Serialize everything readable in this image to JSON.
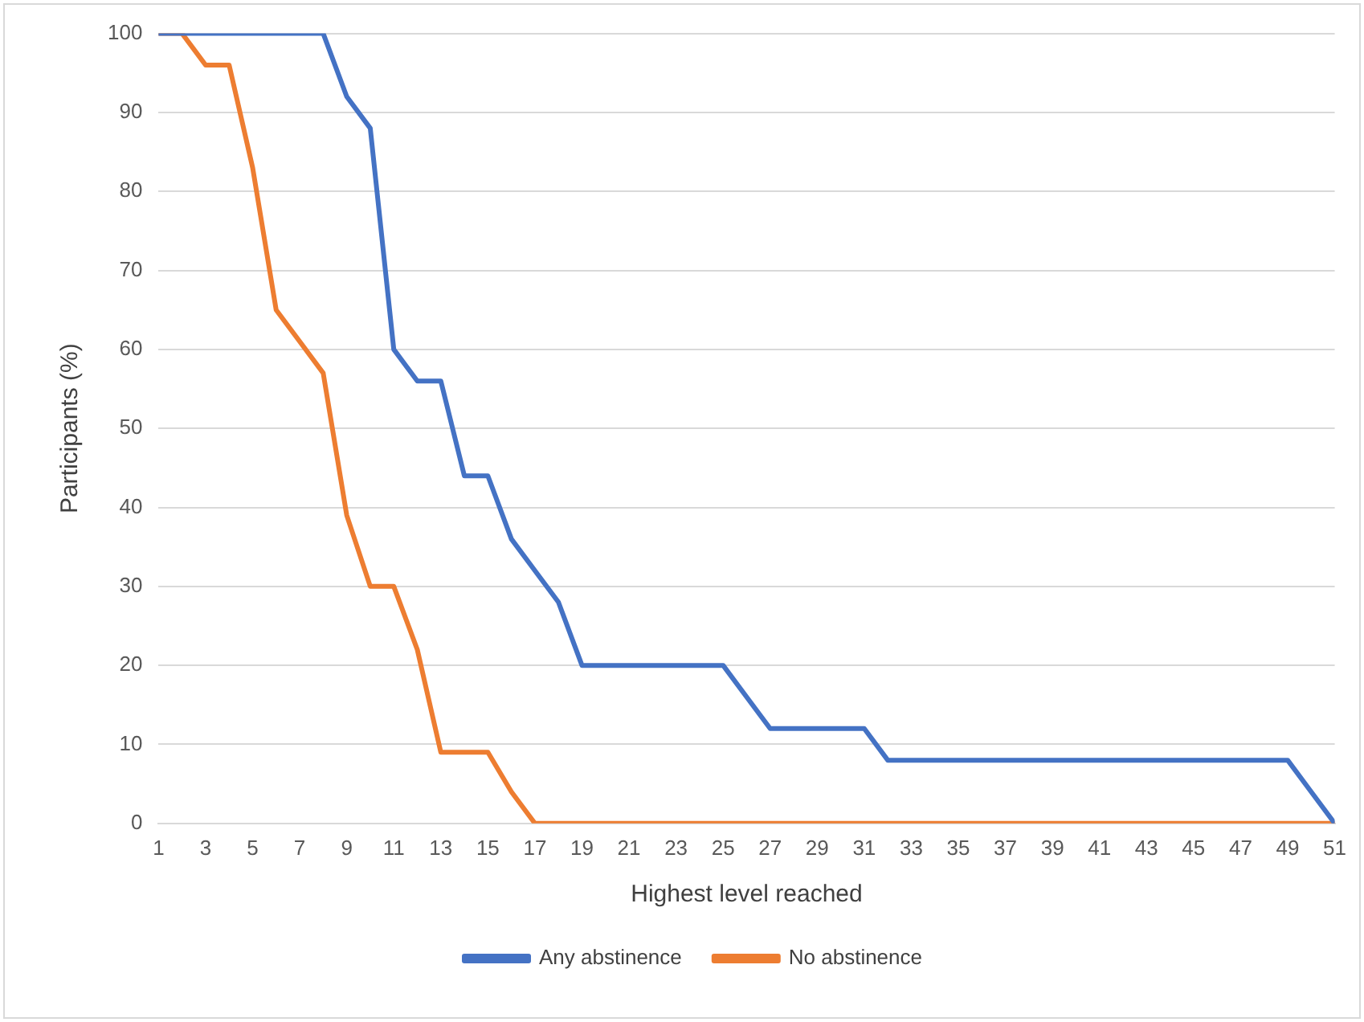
{
  "chart_data": {
    "type": "line",
    "xlabel": "Highest level reached",
    "ylabel": "Participants (%)",
    "x": [
      1,
      2,
      3,
      4,
      5,
      6,
      7,
      8,
      9,
      10,
      11,
      12,
      13,
      14,
      15,
      16,
      17,
      18,
      19,
      20,
      21,
      22,
      23,
      24,
      25,
      26,
      27,
      28,
      29,
      30,
      31,
      32,
      33,
      34,
      35,
      36,
      37,
      38,
      39,
      40,
      41,
      42,
      43,
      44,
      45,
      46,
      47,
      48,
      49,
      50,
      51
    ],
    "series": [
      {
        "name": "Any abstinence",
        "color": "#4472c4",
        "values": [
          100,
          100,
          100,
          100,
          100,
          100,
          100,
          100,
          92,
          88,
          60,
          56,
          56,
          44,
          44,
          36,
          32,
          28,
          20,
          20,
          20,
          20,
          20,
          20,
          20,
          16,
          12,
          12,
          12,
          12,
          12,
          8,
          8,
          8,
          8,
          8,
          8,
          8,
          8,
          8,
          8,
          8,
          8,
          8,
          8,
          8,
          8,
          8,
          8,
          4,
          0
        ]
      },
      {
        "name": "No abstinence",
        "color": "#ed7d31",
        "values": [
          100,
          100,
          96,
          96,
          83,
          65,
          61,
          57,
          39,
          30,
          30,
          22,
          9,
          9,
          9,
          4,
          0,
          0,
          0,
          0,
          0,
          0,
          0,
          0,
          0,
          0,
          0,
          0,
          0,
          0,
          0,
          0,
          0,
          0,
          0,
          0,
          0,
          0,
          0,
          0,
          0,
          0,
          0,
          0,
          0,
          0,
          0,
          0,
          0,
          0,
          0
        ]
      }
    ],
    "xlim": [
      1,
      51
    ],
    "xticks": [
      1,
      3,
      5,
      7,
      9,
      11,
      13,
      15,
      17,
      19,
      21,
      23,
      25,
      27,
      29,
      31,
      33,
      35,
      37,
      39,
      41,
      43,
      45,
      47,
      49,
      51
    ],
    "ylim": [
      0,
      100
    ],
    "yticks": [
      0,
      10,
      20,
      30,
      40,
      50,
      60,
      70,
      80,
      90,
      100
    ],
    "grid": "y",
    "legend": "bottom",
    "marker": "none",
    "line_style": "solid"
  }
}
